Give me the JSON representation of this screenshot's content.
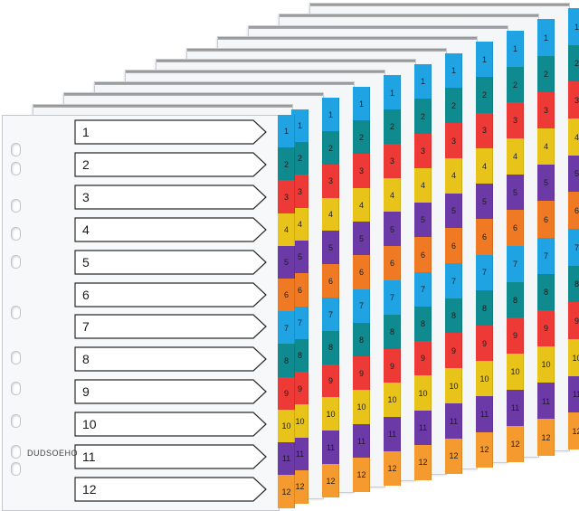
{
  "brand_text": "DUDSOEHO",
  "front_labels": [
    "1",
    "2",
    "3",
    "4",
    "5",
    "6",
    "7",
    "8",
    "9",
    "10",
    "11",
    "12"
  ],
  "tab_labels": [
    "1",
    "2",
    "3",
    "4",
    "5",
    "6",
    "7",
    "8",
    "9",
    "10",
    "11",
    "12"
  ],
  "tab_colors": [
    "#1fa3e2",
    "#0f8a8e",
    "#ee3a36",
    "#e8c41b",
    "#6b3aa6",
    "#f07a24",
    "#1fa3e2",
    "#0f8a8e",
    "#ee3a36",
    "#e8c41b",
    "#6b3aa6",
    "#f59a2e"
  ],
  "sheet_count": 10,
  "colors": {
    "sheet": "#f5f6f8",
    "border": "#c4c7cd",
    "ink": "#1a1a1a"
  }
}
